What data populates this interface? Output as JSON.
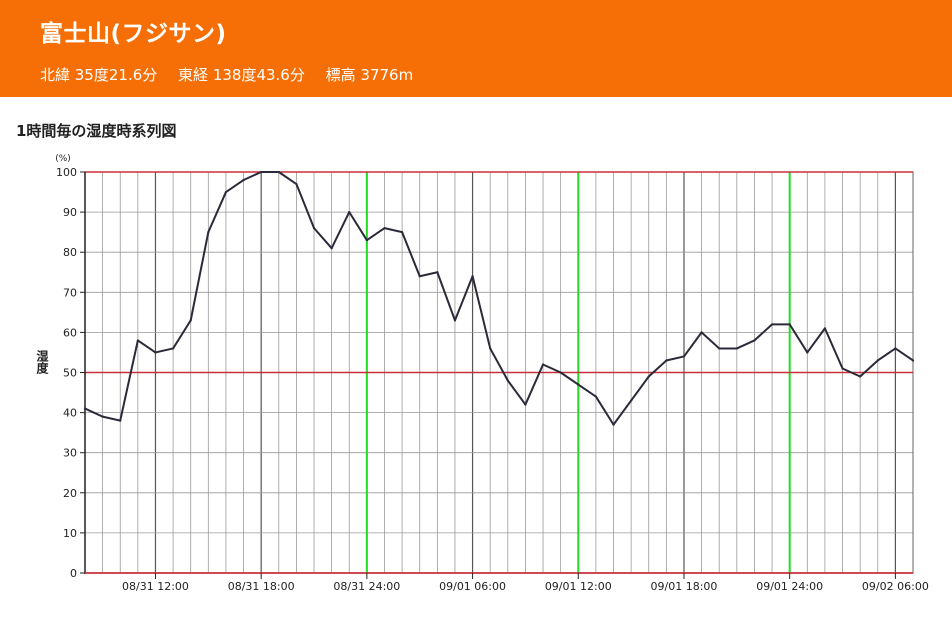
{
  "header": {
    "name": "富士山(フジサン)",
    "latitude": "北緯 35度21.6分",
    "longitude": "東経 138度43.6分",
    "elevation": "標高 3776m"
  },
  "colors": {
    "header_bg": "#f66f06",
    "line": "#2a2a3a",
    "reference_line": "#c8303a",
    "day_marker": "#22dd22",
    "grid": "#777777"
  },
  "chart_data": {
    "type": "line",
    "title": "1時間毎の湿度時系列図",
    "ylabel": "湿度",
    "yunit": "(%)",
    "ylim": [
      0,
      100
    ],
    "yticks": [
      0,
      10,
      20,
      30,
      40,
      50,
      60,
      70,
      80,
      90,
      100
    ],
    "grid": true,
    "reference_lines": [
      50,
      100
    ],
    "x_start": "08/31 08:00",
    "x_step_hours": 1,
    "xlim": [
      0,
      47
    ],
    "xtick_positions": [
      4,
      10,
      16,
      22,
      28,
      34,
      40,
      46
    ],
    "xtick_labels": [
      "08/31 12:00",
      "08/31 18:00",
      "08/31 24:00",
      "09/01 06:00",
      "09/01 12:00",
      "09/01 18:00",
      "09/01 24:00",
      "09/02 06:00"
    ],
    "day_markers": [
      16,
      28,
      40
    ],
    "series": [
      {
        "values": [
          41,
          39,
          38,
          58,
          55,
          56,
          63,
          85,
          95,
          98,
          100,
          100,
          97,
          86,
          81,
          90,
          83,
          86,
          85,
          74,
          75,
          63,
          74,
          56,
          48,
          42,
          52,
          50,
          47,
          44,
          37,
          43,
          49,
          53,
          54,
          60,
          56,
          56,
          58,
          62,
          62,
          55,
          61,
          51,
          49,
          53,
          56,
          53
        ]
      }
    ]
  }
}
